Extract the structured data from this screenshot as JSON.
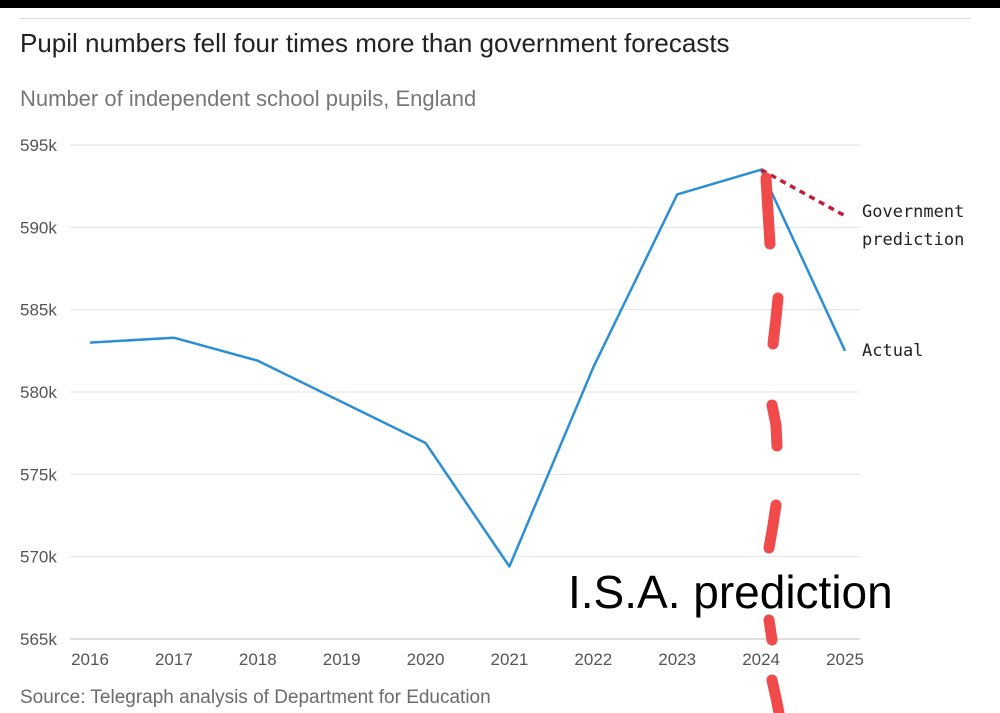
{
  "header": {
    "title": "Pupil numbers fell four times more than government forecasts",
    "subtitle": "Number of independent school pupils, England"
  },
  "footer": {
    "source": "Source: Telegraph analysis of Department for Education"
  },
  "annotation": {
    "text": "I.S.A. prediction",
    "color": "#f04a4a"
  },
  "chart_data": {
    "type": "line",
    "x": [
      2016,
      2017,
      2018,
      2019,
      2020,
      2021,
      2022,
      2023,
      2024,
      2025
    ],
    "ylim": [
      565000,
      595000
    ],
    "yticks": [
      {
        "value": 595000,
        "label": "595k"
      },
      {
        "value": 590000,
        "label": "590k"
      },
      {
        "value": 585000,
        "label": "585k"
      },
      {
        "value": 580000,
        "label": "580k"
      },
      {
        "value": 575000,
        "label": "575k"
      },
      {
        "value": 570000,
        "label": "570k"
      },
      {
        "value": 565000,
        "label": "565k"
      }
    ],
    "xticks": [
      "2016",
      "2017",
      "2018",
      "2019",
      "2020",
      "2021",
      "2022",
      "2023",
      "2024",
      "2025"
    ],
    "grid": true,
    "series": [
      {
        "name": "Actual",
        "color": "#2b8fd6",
        "style": "solid",
        "points": [
          [
            2016,
            583000
          ],
          [
            2017,
            583300
          ],
          [
            2018,
            581900
          ],
          [
            2019,
            579400
          ],
          [
            2020,
            576900
          ],
          [
            2021,
            569400
          ],
          [
            2022,
            581500
          ],
          [
            2023,
            592000
          ],
          [
            2024,
            593500
          ],
          [
            2025,
            582500
          ]
        ]
      },
      {
        "name": "Government prediction",
        "label_lines": [
          "Government",
          "prediction"
        ],
        "color": "#c41e3a",
        "style": "dotted",
        "points": [
          [
            2024,
            593500
          ],
          [
            2025,
            590700
          ]
        ]
      }
    ]
  }
}
